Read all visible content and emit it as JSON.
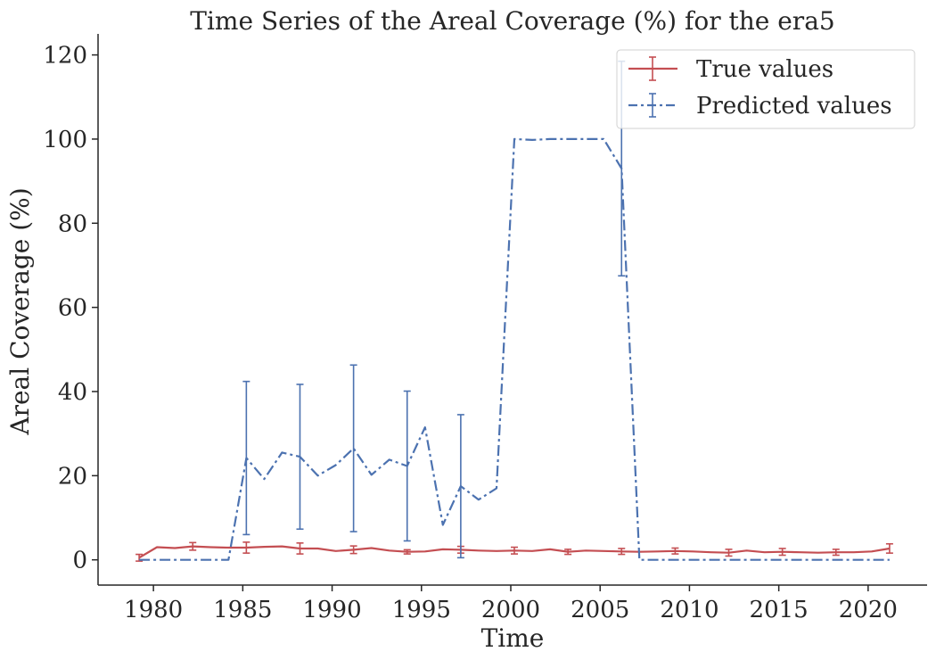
{
  "chart_data": {
    "type": "line",
    "title": "Time Series of the Areal Coverage (%) for the era5",
    "xlabel": "Time",
    "ylabel": "Areal Coverage (%)",
    "xlim": [
      1976.9,
      2023.3
    ],
    "ylim": [
      -6,
      125
    ],
    "xticks": [
      1980,
      1985,
      1990,
      1995,
      2000,
      2005,
      2010,
      2015,
      2020
    ],
    "xtick_labels": [
      "1980",
      "1985",
      "1990",
      "1995",
      "2000",
      "2005",
      "2010",
      "2015",
      "2020"
    ],
    "yticks": [
      0,
      20,
      40,
      60,
      80,
      100,
      120
    ],
    "ytick_labels": [
      "0",
      "20",
      "40",
      "60",
      "80",
      "100",
      "120"
    ],
    "grid": false,
    "legend_position": "top-right",
    "x": [
      1979.2,
      1980.2,
      1981.2,
      1982.2,
      1983.2,
      1984.2,
      1985.2,
      1986.2,
      1987.2,
      1988.2,
      1989.2,
      1990.2,
      1991.2,
      1992.2,
      1993.2,
      1994.2,
      1995.2,
      1996.2,
      1997.2,
      1998.2,
      1999.2,
      2000.2,
      2001.2,
      2002.2,
      2003.2,
      2004.2,
      2005.2,
      2006.2,
      2007.2,
      2008.2,
      2009.2,
      2010.2,
      2011.2,
      2012.2,
      2013.2,
      2014.2,
      2015.2,
      2016.2,
      2017.2,
      2018.2,
      2019.2,
      2020.2,
      2021.2
    ],
    "series": [
      {
        "name": "True values",
        "color": "#c44e52",
        "linestyle": "solid",
        "values": [
          0.5,
          3.0,
          2.8,
          3.2,
          3.0,
          2.9,
          2.9,
          3.1,
          3.2,
          2.7,
          2.7,
          2.1,
          2.4,
          2.8,
          2.2,
          1.9,
          2.0,
          2.5,
          2.4,
          2.2,
          2.1,
          2.2,
          2.1,
          2.5,
          1.9,
          2.2,
          2.1,
          2.0,
          1.9,
          2.0,
          2.1,
          2.0,
          1.8,
          1.7,
          2.2,
          1.8,
          1.9,
          1.8,
          1.7,
          1.8,
          1.8,
          2.0,
          2.7
        ],
        "error_bars": [
          {
            "x": 1979.2,
            "err": 0.8
          },
          {
            "x": 1982.2,
            "err": 0.9
          },
          {
            "x": 1985.2,
            "err": 1.3
          },
          {
            "x": 1988.2,
            "err": 1.3
          },
          {
            "x": 1991.2,
            "err": 0.9
          },
          {
            "x": 1994.2,
            "err": 0.5
          },
          {
            "x": 1997.2,
            "err": 0.8
          },
          {
            "x": 2000.2,
            "err": 0.8
          },
          {
            "x": 2003.2,
            "err": 0.6
          },
          {
            "x": 2006.2,
            "err": 0.7
          },
          {
            "x": 2009.2,
            "err": 0.7
          },
          {
            "x": 2012.2,
            "err": 0.8
          },
          {
            "x": 2015.2,
            "err": 0.8
          },
          {
            "x": 2018.2,
            "err": 0.7
          },
          {
            "x": 2021.2,
            "err": 1.1
          }
        ]
      },
      {
        "name": "Predicted values",
        "color": "#4c72b0",
        "linestyle": "dashdot",
        "values": [
          0,
          0,
          0,
          0,
          0,
          0,
          24.2,
          19.2,
          25.5,
          24.5,
          20.0,
          22.5,
          26.5,
          20.2,
          23.8,
          22.3,
          31.5,
          8.3,
          17.5,
          14.3,
          17.0,
          100,
          99.8,
          100,
          100,
          100,
          100,
          93.0,
          0,
          0,
          0,
          0,
          0,
          0,
          0,
          0,
          0,
          0,
          0,
          0,
          0,
          0,
          0
        ],
        "error_bars": [
          {
            "x": 1985.2,
            "err": 18.2
          },
          {
            "x": 1988.2,
            "err": 17.2
          },
          {
            "x": 1991.2,
            "err": 19.8
          },
          {
            "x": 1994.2,
            "err": 17.8
          },
          {
            "x": 1997.2,
            "err": 17.0
          },
          {
            "x": 2006.2,
            "err": 25.5
          }
        ]
      }
    ]
  }
}
